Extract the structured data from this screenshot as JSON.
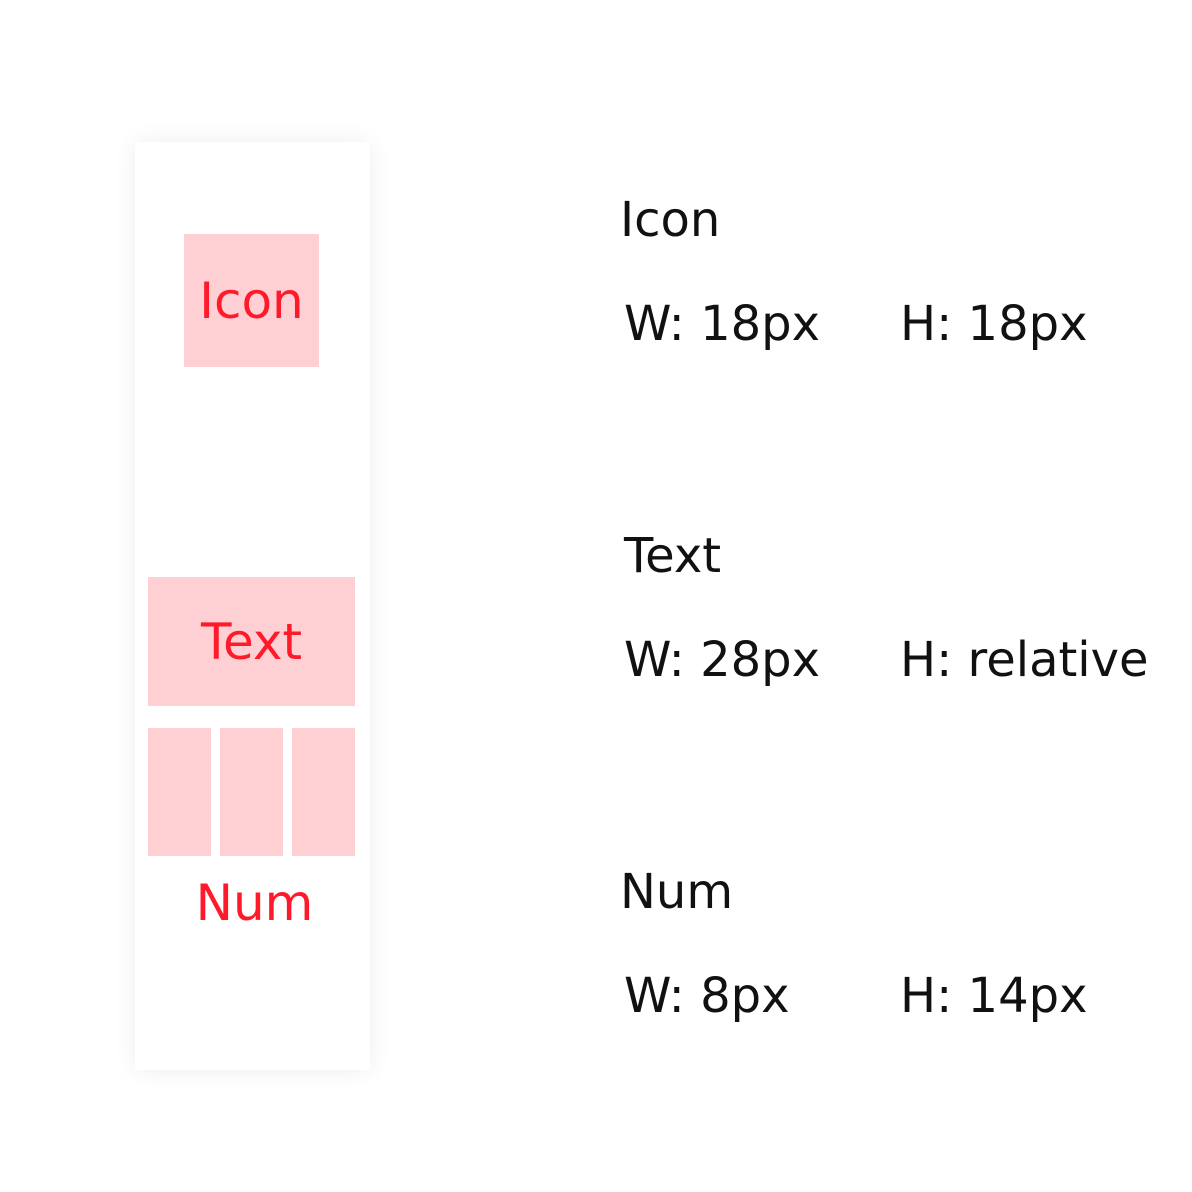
{
  "diagram": {
    "icon_label": "Icon",
    "text_label": "Text",
    "num_label": "Num"
  },
  "specs": {
    "icon": {
      "title": "Icon",
      "width": "W: 18px",
      "height": "H: 18px"
    },
    "text": {
      "title": "Text",
      "width": "W: 28px",
      "height": "H: relative"
    },
    "num": {
      "title": "Num",
      "width": "W: 8px",
      "height": "H: 14px"
    }
  },
  "colors": {
    "block_fill": "#ffd0d3",
    "block_text": "#ff1a2b",
    "spec_text": "#111111"
  }
}
